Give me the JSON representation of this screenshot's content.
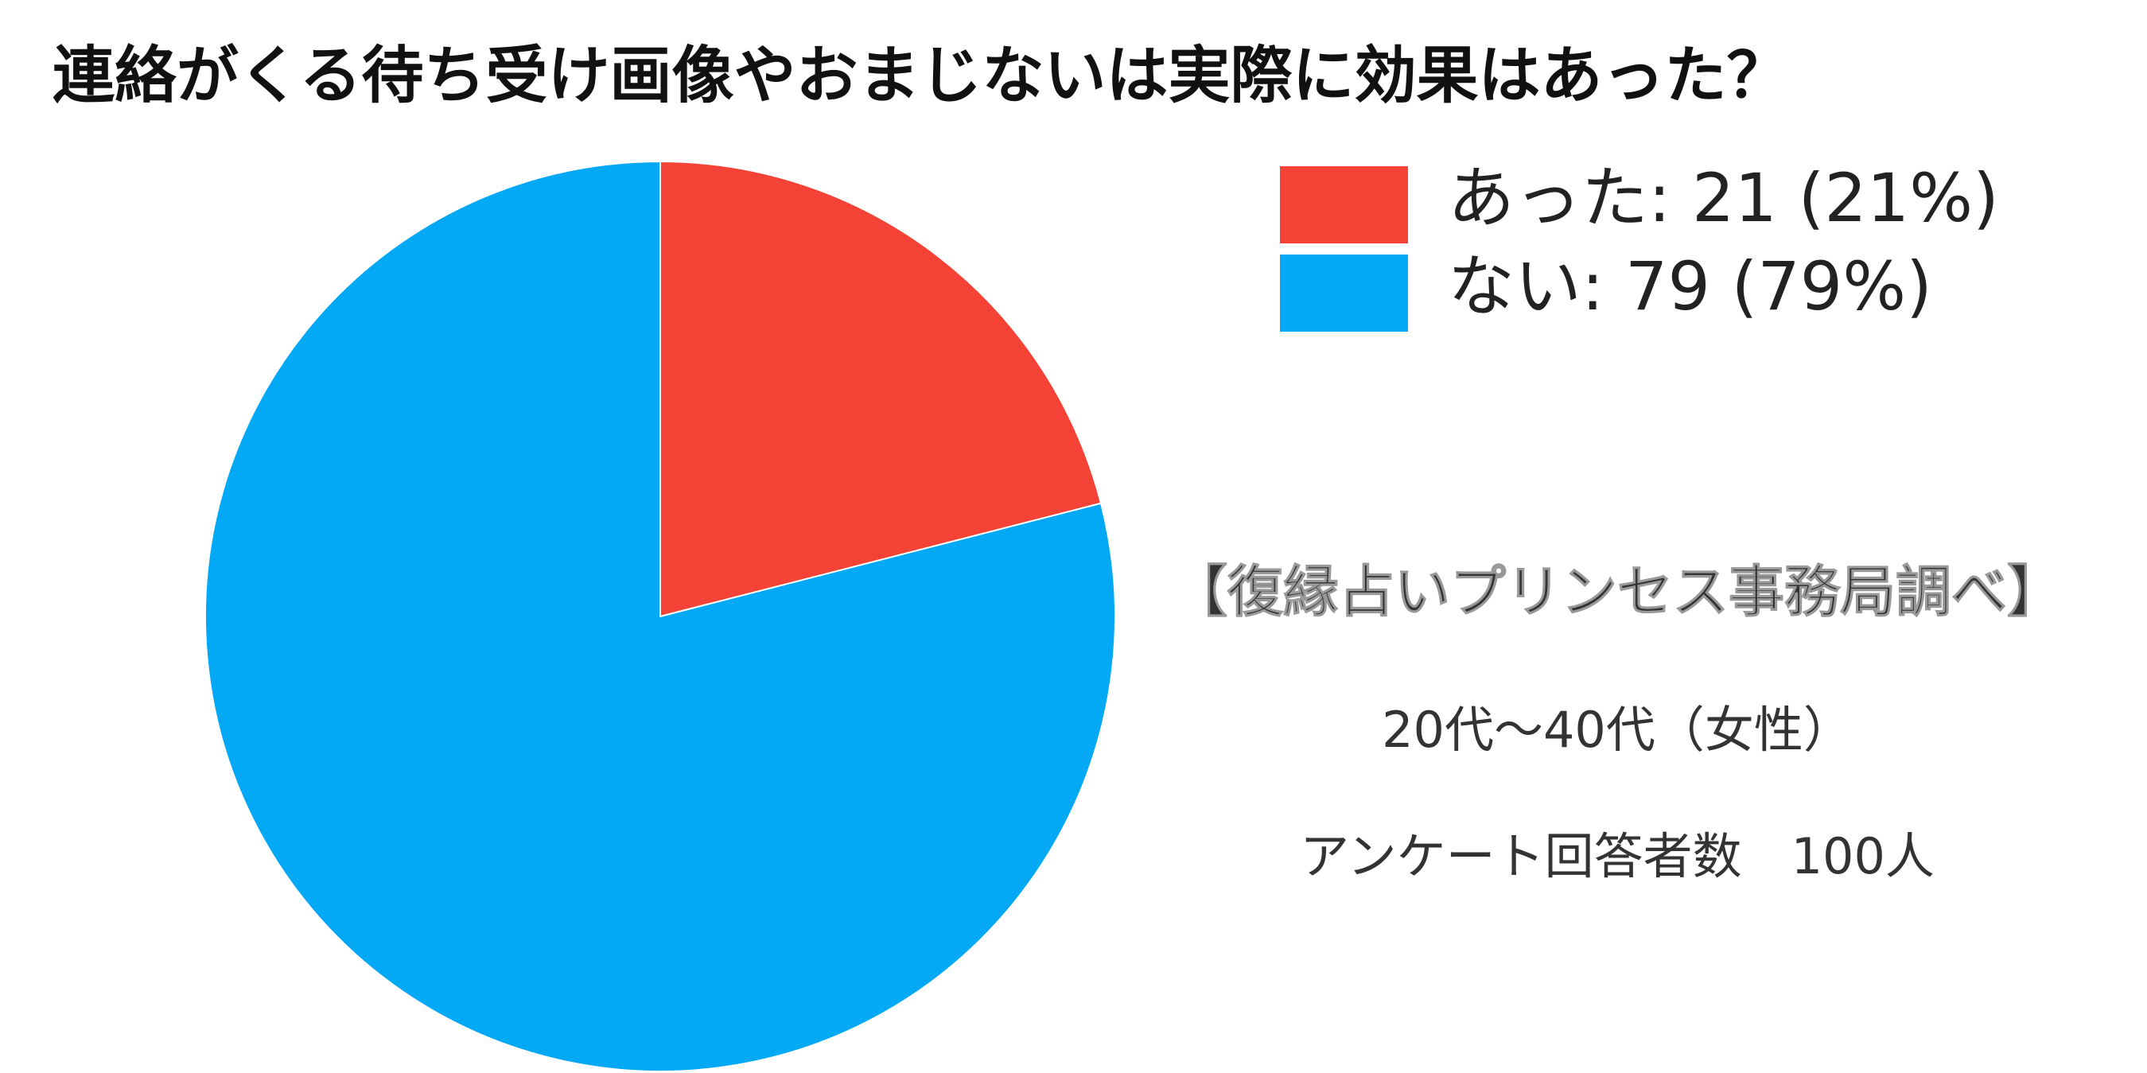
{
  "chart_data": {
    "type": "pie",
    "title": "連絡がくる待ち受け画像やおまじないは実際に効果はあった？",
    "categories": [
      "あった: 21 (21%)",
      "ない: 79 (79%)"
    ],
    "values": [
      21,
      79
    ],
    "colors": [
      "#f44336",
      "#03a9f4"
    ],
    "legend": "top-right",
    "annotations": [
      "【復縁占いプリンセス事務局調べ】",
      "20代〜40代（女性）",
      "アンケート回答者数　100人"
    ]
  }
}
